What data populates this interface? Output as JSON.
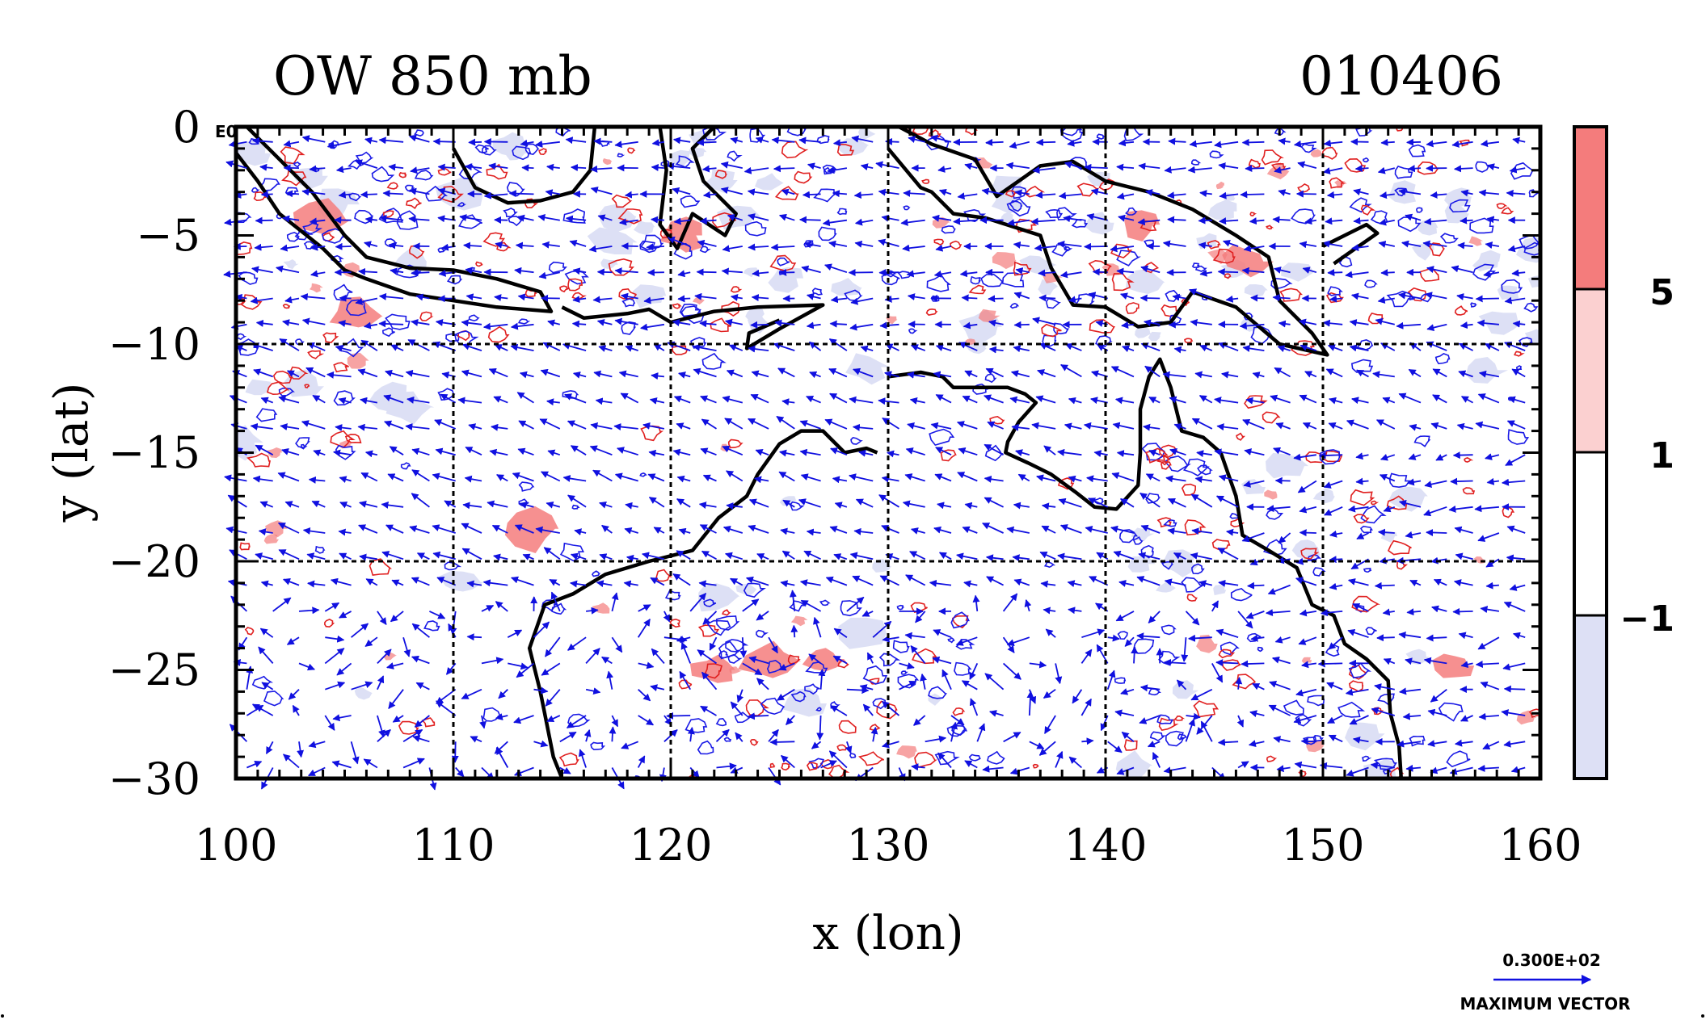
{
  "title_left": "OW 850 mb",
  "title_right": "010406",
  "xlabel": "x (lon)",
  "ylabel": "y (lat)",
  "x_ticks": [
    "100",
    "110",
    "120",
    "130",
    "140",
    "150",
    "160"
  ],
  "y_ticks": [
    "0",
    "−5",
    "−10",
    "−15",
    "−20",
    "−25",
    "−30"
  ],
  "corner_tag": "E0",
  "colorbar": {
    "labels": [
      "5",
      "1",
      "−1"
    ],
    "colors": {
      "strong_positive": "#f47c7c",
      "weak_positive": "#fbd0d0",
      "neutral": "#ffffff",
      "negative": "#dde0f5"
    }
  },
  "vector_legend": {
    "value": "0.300E+02",
    "caption": "MAXIMUM VECTOR",
    "arrow_color": "#1010e0"
  },
  "colors": {
    "contour_positive": "#e02020",
    "contour_negative": "#1a1ae6",
    "coastline": "#000000",
    "grid": "#000000"
  },
  "map_extent": {
    "lon": [
      100,
      160
    ],
    "lat": [
      -30,
      0
    ]
  },
  "coastlines": [
    {
      "name": "sumatra-java",
      "points": [
        [
          100.5,
          0
        ],
        [
          102,
          -1.5
        ],
        [
          103.5,
          -3
        ],
        [
          105,
          -5
        ],
        [
          106,
          -6
        ],
        [
          108,
          -6.5
        ],
        [
          110,
          -6.6
        ],
        [
          112,
          -7
        ],
        [
          114,
          -7.6
        ],
        [
          114.5,
          -8.5
        ],
        [
          112,
          -8.3
        ],
        [
          110,
          -8
        ],
        [
          108,
          -7.7
        ],
        [
          106,
          -7
        ],
        [
          105,
          -6.6
        ],
        [
          104,
          -5.6
        ],
        [
          102,
          -4
        ],
        [
          101,
          -2.5
        ],
        [
          100,
          -1.2
        ]
      ]
    },
    {
      "name": "borneo",
      "points": [
        [
          110,
          -1
        ],
        [
          111,
          -2.8
        ],
        [
          112.5,
          -3.5
        ],
        [
          114,
          -3.4
        ],
        [
          115.5,
          -3
        ],
        [
          116.3,
          -2
        ],
        [
          116.5,
          0
        ]
      ]
    },
    {
      "name": "sulawesi",
      "points": [
        [
          119.5,
          0
        ],
        [
          119.8,
          -2
        ],
        [
          119.5,
          -4.5
        ],
        [
          120.3,
          -5.6
        ],
        [
          121,
          -4
        ],
        [
          122.5,
          -5
        ],
        [
          123,
          -4
        ],
        [
          121.5,
          -2.5
        ],
        [
          121,
          -1
        ],
        [
          122,
          0
        ]
      ]
    },
    {
      "name": "lesser-sundas",
      "points": [
        [
          115,
          -8.3
        ],
        [
          116,
          -8.8
        ],
        [
          118,
          -8.6
        ],
        [
          119,
          -8.4
        ],
        [
          120,
          -9
        ],
        [
          122,
          -8.5
        ],
        [
          124,
          -8.3
        ],
        [
          127,
          -8.2
        ],
        [
          125,
          -9.3
        ],
        [
          123.5,
          -10.2
        ],
        [
          123.6,
          -9.5
        ],
        [
          125,
          -8.9
        ]
      ]
    },
    {
      "name": "new-guinea",
      "points": [
        [
          130.5,
          0
        ],
        [
          132,
          -0.8
        ],
        [
          134,
          -1.5
        ],
        [
          135,
          -3.2
        ],
        [
          137,
          -1.8
        ],
        [
          138.5,
          -1.6
        ],
        [
          140,
          -2.5
        ],
        [
          142,
          -3
        ],
        [
          144,
          -3.8
        ],
        [
          146,
          -5
        ],
        [
          147.5,
          -6
        ],
        [
          148,
          -8
        ],
        [
          149.5,
          -9.5
        ],
        [
          150.2,
          -10.5
        ],
        [
          148,
          -10
        ],
        [
          146,
          -8.3
        ],
        [
          144,
          -7.6
        ],
        [
          143,
          -9
        ],
        [
          141.5,
          -9.2
        ],
        [
          140,
          -8.3
        ],
        [
          138.5,
          -8.2
        ],
        [
          137.5,
          -6.5
        ],
        [
          137,
          -5
        ],
        [
          134.5,
          -4.2
        ],
        [
          133,
          -4
        ],
        [
          132,
          -3
        ],
        [
          131.5,
          -2.8
        ],
        [
          130,
          -1
        ]
      ]
    },
    {
      "name": "new-britain",
      "points": [
        [
          150,
          -5.5
        ],
        [
          151,
          -5
        ],
        [
          152,
          -4.5
        ],
        [
          152.5,
          -4.9
        ],
        [
          151.5,
          -5.6
        ],
        [
          150.5,
          -6.3
        ]
      ]
    },
    {
      "name": "australia",
      "points": [
        [
          130,
          -11.5
        ],
        [
          131.5,
          -11.3
        ],
        [
          132.5,
          -11.5
        ],
        [
          133,
          -12
        ],
        [
          134,
          -12
        ],
        [
          135.5,
          -12
        ],
        [
          136.3,
          -12.3
        ],
        [
          136.8,
          -12.7
        ],
        [
          136,
          -13.6
        ],
        [
          135.5,
          -14.5
        ],
        [
          135.4,
          -15
        ],
        [
          136.5,
          -15.5
        ],
        [
          137.5,
          -16
        ],
        [
          138.6,
          -16.8
        ],
        [
          139.5,
          -17.5
        ],
        [
          140.5,
          -17.6
        ],
        [
          141.5,
          -16.5
        ],
        [
          141.6,
          -15
        ],
        [
          141.6,
          -13
        ],
        [
          142,
          -11.5
        ],
        [
          142.5,
          -10.7
        ],
        [
          143,
          -12
        ],
        [
          143.5,
          -14
        ],
        [
          144.5,
          -14.3
        ],
        [
          145.3,
          -15
        ],
        [
          146,
          -17
        ],
        [
          146.3,
          -18.8
        ],
        [
          147.5,
          -19.5
        ],
        [
          148.8,
          -20.3
        ],
        [
          149.5,
          -22
        ],
        [
          150.5,
          -22.5
        ],
        [
          151,
          -23.8
        ],
        [
          152,
          -24.5
        ],
        [
          153,
          -25.5
        ],
        [
          153.1,
          -27
        ],
        [
          153.5,
          -28.5
        ],
        [
          153.6,
          -30
        ]
      ]
    },
    {
      "name": "australia-west",
      "points": [
        [
          129.5,
          -15
        ],
        [
          129,
          -14.8
        ],
        [
          128,
          -15
        ],
        [
          127,
          -14
        ],
        [
          126,
          -14
        ],
        [
          125,
          -14.6
        ],
        [
          124,
          -16
        ],
        [
          123.5,
          -17
        ],
        [
          122.2,
          -18
        ],
        [
          121,
          -19.5
        ],
        [
          119,
          -20
        ],
        [
          117,
          -20.6
        ],
        [
          115.5,
          -21.5
        ],
        [
          114.2,
          -22
        ],
        [
          113.5,
          -24
        ],
        [
          114,
          -26
        ],
        [
          114.3,
          -27.5
        ],
        [
          114.6,
          -29
        ],
        [
          115,
          -30
        ]
      ]
    }
  ]
}
